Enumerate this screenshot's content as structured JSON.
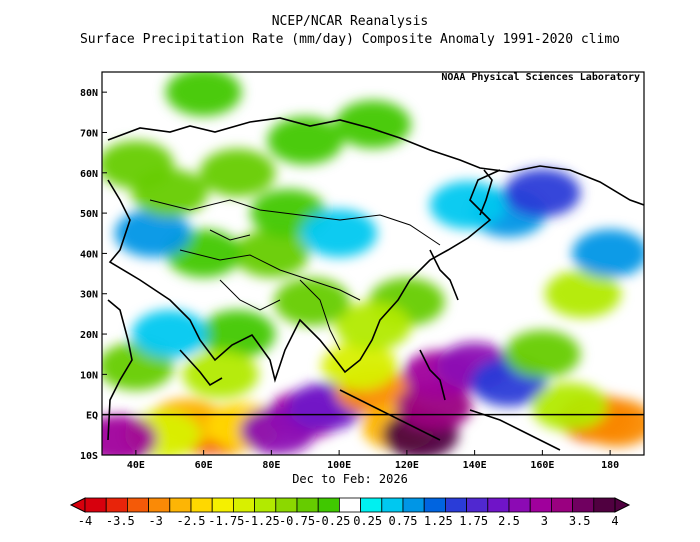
{
  "header": {
    "title": "NCEP/NCAR Reanalysis",
    "subtitle": "Surface Precipitation Rate (mm/day) Composite Anomaly 1991-2020 climo",
    "credit": "NOAA Physical Sciences Laboratory",
    "period": "Dec to Feb: 2026"
  },
  "map": {
    "lon_range": [
      30,
      190
    ],
    "lat_range": [
      -10,
      85
    ],
    "lon_ticks": [
      {
        "value": 60,
        "label": "60E"
      },
      {
        "value": 80,
        "label": "80E"
      },
      {
        "value": 100,
        "label": "100E"
      },
      {
        "value": 120,
        "label": "120E"
      },
      {
        "value": 140,
        "label": "140E"
      },
      {
        "value": 160,
        "label": "160E"
      },
      {
        "value": 180,
        "label": "180"
      },
      {
        "value": 40,
        "label": "40E"
      }
    ],
    "lat_ticks": [
      {
        "value": 80,
        "label": "80N"
      },
      {
        "value": 70,
        "label": "70N"
      },
      {
        "value": 60,
        "label": "60N"
      },
      {
        "value": 50,
        "label": "50N"
      },
      {
        "value": 40,
        "label": "40N"
      },
      {
        "value": 30,
        "label": "30N"
      },
      {
        "value": 20,
        "label": "20N"
      },
      {
        "value": 10,
        "label": "10N"
      },
      {
        "value": 0,
        "label": "EQ"
      },
      {
        "value": -10,
        "label": "10S"
      }
    ],
    "anomaly_regions": [
      {
        "lon": 60,
        "lat": -4,
        "value": -3.5
      },
      {
        "lon": 66,
        "lat": -4,
        "value": -3.5
      },
      {
        "lon": 55,
        "lat": -2,
        "value": -2.5
      },
      {
        "lon": 72,
        "lat": -3,
        "value": -2
      },
      {
        "lon": 48,
        "lat": -5,
        "value": -1.5
      },
      {
        "lon": 35,
        "lat": -6,
        "value": 2.5
      },
      {
        "lon": 90,
        "lat": 0,
        "value": 2.5
      },
      {
        "lon": 82,
        "lat": -4,
        "value": 2
      },
      {
        "lon": 96,
        "lat": 2,
        "value": 1.75
      },
      {
        "lon": 110,
        "lat": 6,
        "value": -3
      },
      {
        "lon": 106,
        "lat": 12,
        "value": -1.5
      },
      {
        "lon": 118,
        "lat": -3,
        "value": -2.5
      },
      {
        "lon": 124,
        "lat": -5,
        "value": 4
      },
      {
        "lon": 128,
        "lat": 2,
        "value": 3
      },
      {
        "lon": 130,
        "lat": 10,
        "value": 2.5
      },
      {
        "lon": 140,
        "lat": 12,
        "value": 2
      },
      {
        "lon": 150,
        "lat": 8,
        "value": 1.25
      },
      {
        "lon": 176,
        "lat": -1,
        "value": -3.5
      },
      {
        "lon": 182,
        "lat": -2,
        "value": -3
      },
      {
        "lon": 168,
        "lat": 2,
        "value": -1.25
      },
      {
        "lon": 160,
        "lat": 15,
        "value": -0.75
      },
      {
        "lon": 172,
        "lat": 30,
        "value": -1.25
      },
      {
        "lon": 180,
        "lat": 40,
        "value": 0.75
      },
      {
        "lon": 150,
        "lat": 50,
        "value": 0.75
      },
      {
        "lon": 160,
        "lat": 55,
        "value": 1.25
      },
      {
        "lon": 138,
        "lat": 52,
        "value": 0.5
      },
      {
        "lon": 120,
        "lat": 28,
        "value": -0.75
      },
      {
        "lon": 110,
        "lat": 22,
        "value": -1.25
      },
      {
        "lon": 92,
        "lat": 28,
        "value": -0.75
      },
      {
        "lon": 80,
        "lat": 40,
        "value": -0.75
      },
      {
        "lon": 60,
        "lat": 40,
        "value": -0.5
      },
      {
        "lon": 45,
        "lat": 45,
        "value": 0.75
      },
      {
        "lon": 50,
        "lat": 55,
        "value": -0.75
      },
      {
        "lon": 70,
        "lat": 60,
        "value": -0.75
      },
      {
        "lon": 90,
        "lat": 68,
        "value": -0.5
      },
      {
        "lon": 110,
        "lat": 72,
        "value": -0.5
      },
      {
        "lon": 60,
        "lat": 80,
        "value": -0.5
      },
      {
        "lon": 40,
        "lat": 62,
        "value": -0.75
      },
      {
        "lon": 85,
        "lat": 50,
        "value": -0.5
      },
      {
        "lon": 70,
        "lat": 20,
        "value": -0.5
      },
      {
        "lon": 40,
        "lat": 12,
        "value": -0.75
      },
      {
        "lon": 50,
        "lat": 20,
        "value": 0.5
      },
      {
        "lon": 65,
        "lat": 10,
        "value": -1.25
      },
      {
        "lon": 100,
        "lat": 45,
        "value": 0.5
      }
    ]
  },
  "colorbar": {
    "labels": [
      "-4",
      "-3.5",
      "-3",
      "-2.5",
      "-1.75",
      "-1.25",
      "-0.75",
      "-0.25",
      "0.25",
      "0.75",
      "1.25",
      "1.75",
      "2.5",
      "3",
      "3.5",
      "4"
    ],
    "levels": [
      -4,
      -3.5,
      -3,
      -2.5,
      -2,
      -1.75,
      -1.5,
      -1.25,
      -1,
      -0.75,
      -0.5,
      -0.25,
      0.25,
      0.5,
      0.75,
      1,
      1.25,
      1.5,
      1.75,
      2,
      2.5,
      3,
      3.5,
      4
    ],
    "colors": [
      "#d7000d",
      "#e8240a",
      "#f45a08",
      "#fa8a06",
      "#fdb505",
      "#ffd800",
      "#f5f000",
      "#d8f000",
      "#b2ea00",
      "#8cd800",
      "#66cc00",
      "#40c800",
      "#ffffff",
      "#00f0f0",
      "#00c8f0",
      "#0096e6",
      "#0064e0",
      "#2a3cd8",
      "#5028d0",
      "#7014c8",
      "#8c0ab4",
      "#a0009c",
      "#9a0080",
      "#700060",
      "#500040"
    ]
  }
}
